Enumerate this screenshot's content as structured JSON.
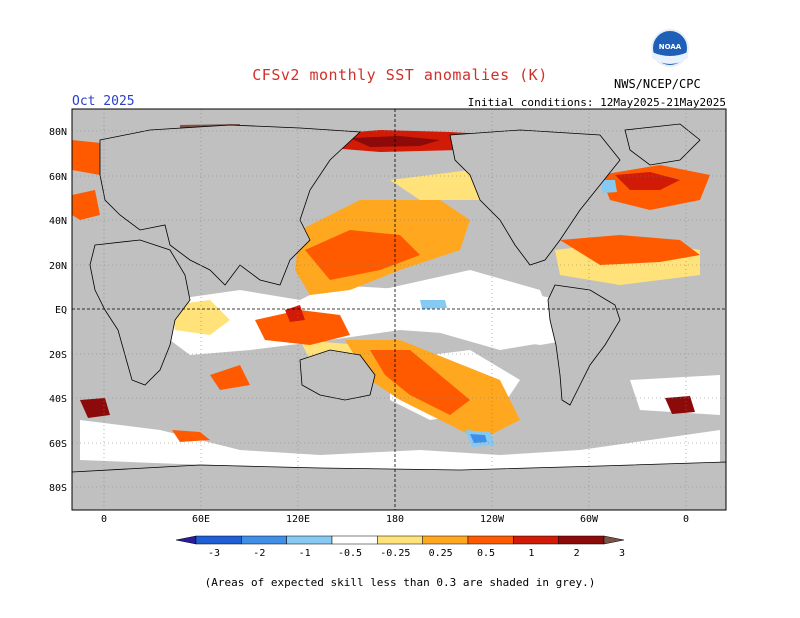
{
  "title": "CFSv2 monthly SST anomalies (K)",
  "forecast_month": "Oct 2025",
  "initial_conditions": "Initial conditions: 12May2025-21May2025",
  "agency": "NWS/NCEP/CPC",
  "logo_text": "NOAA",
  "lat_labels": [
    "80N",
    "60N",
    "40N",
    "20N",
    "EQ",
    "20S",
    "40S",
    "60S",
    "80S"
  ],
  "lon_labels": [
    "0",
    "60E",
    "120E",
    "180",
    "120W",
    "60W",
    "0"
  ],
  "colorbar": {
    "ticks": [
      "-3",
      "-2",
      "-1",
      "-0.5",
      "-0.25",
      "0.25",
      "0.5",
      "1",
      "2",
      "3"
    ],
    "colors": [
      "#2a1c9c",
      "#1f5fd6",
      "#3f8fe8",
      "#86c9f3",
      "#ffffff",
      "#ffe27a",
      "#ffa71e",
      "#ff5a00",
      "#d21b06",
      "#8c0a0a",
      "#7d5246"
    ]
  },
  "note": "(Areas of expected skill less than 0.3 are shaded in grey.)",
  "colors": {
    "skill_mask": "#c0c0c0",
    "title": "#d0302a",
    "month": "#2a3fc9"
  }
}
